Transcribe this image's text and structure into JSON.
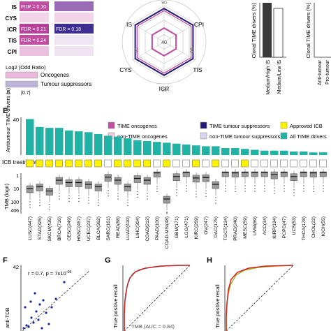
{
  "panel_labels": {
    "e": "E",
    "f": "F",
    "g": "G",
    "h": "H"
  },
  "heatmap": {
    "rows": [
      {
        "label": "IS",
        "left_text": "FDR = 0.10",
        "right_text": "",
        "left_color": "#c04fa2",
        "right_color": "#9b6bb8"
      },
      {
        "label": "CYS",
        "left_text": "",
        "right_text": "",
        "left_color": "#f3d3e8",
        "right_color": "#f3d3e8"
      },
      {
        "label": "ICR",
        "left_text": "FDR = 0.21",
        "right_text": "FDR = 0.18",
        "left_color": "#b6439a",
        "right_color": "#3d2f8f"
      },
      {
        "label": "TIS",
        "left_text": "FDR = 0.24",
        "right_text": "",
        "left_color": "#bf4ea1",
        "right_color": "#efe6f4"
      },
      {
        "label": "CPI",
        "left_text": "",
        "right_text": "",
        "left_color": "#eac0de",
        "right_color": "#f0e4f2"
      }
    ],
    "legend_title": "Log2 (Odd Ratio)",
    "legend_items": [
      "Oncogenes",
      "Tumour suppressors"
    ],
    "scale_labels": [
      "0",
      "|0.7|"
    ],
    "colors": {
      "oncogene_low": "#f6e2ef",
      "oncogene_high": "#c04fa2",
      "tsg_low": "#ece8f4",
      "tsg_high": "#2a2280"
    }
  },
  "radar": {
    "axes": [
      "IS",
      "CPI",
      "TIS",
      "ICR",
      "CYS"
    ],
    "ring_label": "40",
    "outer_labels": [
      "90",
      "90",
      "90",
      "90"
    ]
  },
  "clonal": {
    "ylabel": "Clonal TIME drivers (%)",
    "left_categories": [
      "Medium/High IS",
      "Medium/Low IS"
    ],
    "right_categories": [
      "Anti-tumour",
      "Pro-tumour"
    ]
  },
  "legend_e": [
    {
      "label": "TIME oncogenes",
      "color": "#c04fa2"
    },
    {
      "label": "TIME tumour suppressors",
      "color": "#241c78"
    },
    {
      "label": "Approved ICB",
      "color": "#fff200"
    },
    {
      "label": "non-TIME oncogenes",
      "color": "#f3c9e4"
    },
    {
      "label": "non-TIME tumour suppressors",
      "color": "#d6d3ea"
    },
    {
      "label": "All TIME drivers",
      "color": "#22b3a7"
    }
  ],
  "chart_e": {
    "ylabel": "Antitumour TIME drivers (n)",
    "ytick_top": "40",
    "icb_label": "ICB treatment",
    "tmb_label": "TMB (logn)",
    "tmb_ticks": [
      "1",
      "10",
      "100",
      "406"
    ]
  },
  "chart_data": [
    {
      "type": "bar",
      "title": "",
      "ylabel": "Antitumour TIME drivers (n)",
      "ylim": [
        0,
        43
      ],
      "categories": [
        "LUSC(447)",
        "STAD(325)",
        "SKCM(435)",
        "BRCA(716)",
        "CESC(249)",
        "HNSC(457)",
        "UCEC(237)",
        "BLCA(362)",
        "SARC(161)",
        "READ(88)",
        "LUAD(410)",
        "LIHC(304)",
        "COAD(212)",
        "PAAD(100)",
        "COAD-MSI(48)",
        "GBM(171)",
        "LGG(471)",
        "KIRC(269)",
        "OV(247)",
        "OAC(175)",
        "TGCT(134)",
        "PRAD(240)",
        "MESC(59)",
        "UVM(69)",
        "ACC(34)",
        "KIRP(194)",
        "PCPG(47)",
        "UCS(53)",
        "THCA(178)",
        "CHOL(22)",
        "KICH(55)"
      ],
      "values": [
        41,
        32,
        31,
        31,
        28,
        27,
        26,
        24,
        22,
        21,
        19,
        17,
        16,
        15,
        14,
        13,
        12,
        11,
        10,
        10,
        8,
        8,
        7,
        6,
        5,
        5,
        5,
        4,
        4,
        3,
        3
      ],
      "icb_approved": [
        true,
        true,
        true,
        true,
        true,
        true,
        true,
        true,
        false,
        true,
        true,
        true,
        true,
        false,
        true,
        false,
        false,
        true,
        false,
        true,
        false,
        false,
        true,
        false,
        false,
        false,
        false,
        false,
        false,
        false,
        false
      ],
      "tmb_medians": [
        8,
        6,
        12,
        2,
        3,
        3,
        4,
        6,
        1.2,
        2,
        6,
        1.5,
        2,
        0.6,
        45,
        1.1,
        0.4,
        1.4,
        1.3,
        4,
        0.4,
        0.6,
        0.5,
        0.35,
        0.3,
        0.8,
        0.35,
        1.1,
        0.2,
        0.6,
        0.3
      ]
    },
    {
      "type": "scatter",
      "ylabel": "anti-TDB",
      "ytick": "42",
      "annotation": "r = 0.7, p = 7x10",
      "annotation_exp": "-06"
    },
    {
      "type": "line",
      "xlabel": "",
      "ylabel": "True positive recall",
      "legend": "TMB (AUC = 0.84)"
    },
    {
      "type": "line",
      "ylabel": "True positive recall"
    }
  ]
}
